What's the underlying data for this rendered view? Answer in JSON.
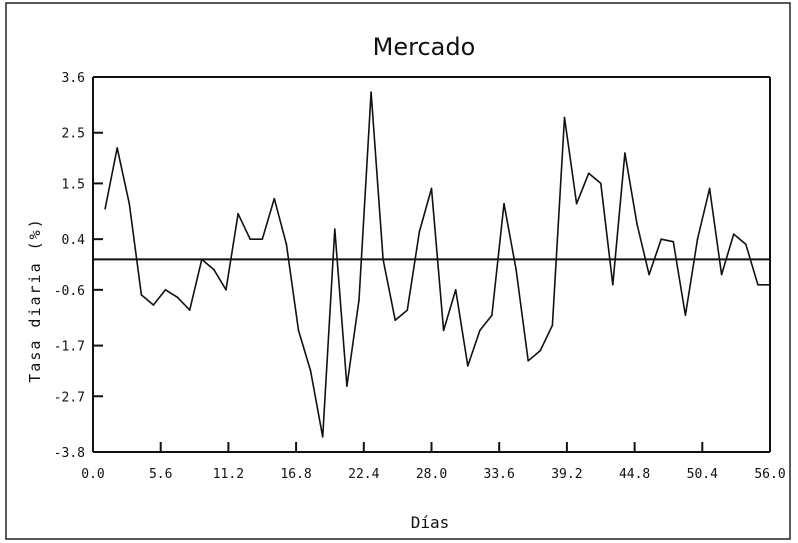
{
  "chart_data": {
    "type": "line",
    "title": "Mercado",
    "xlabel": "Días",
    "ylabel": "Tasa diaria (%)",
    "xlim": [
      0.0,
      56.0
    ],
    "ylim": [
      -3.8,
      3.6
    ],
    "xticks": [
      "0.0",
      "5.6",
      "11.2",
      "16.8",
      "22.4",
      "28.0",
      "33.6",
      "39.2",
      "44.8",
      "50.4",
      "56.0"
    ],
    "xtick_values": [
      0.0,
      5.6,
      11.2,
      16.8,
      22.4,
      28.0,
      33.6,
      39.2,
      44.8,
      50.4,
      56.0
    ],
    "yticks": [
      "3.6",
      "2.5",
      "1.5",
      "0.4",
      "-0.6",
      "-1.7",
      "-2.7",
      "-3.8"
    ],
    "ytick_values": [
      3.6,
      2.5,
      1.5,
      0.4,
      -0.6,
      -1.7,
      -2.7,
      -3.8
    ],
    "reference_line_y": 0.0,
    "grid": false,
    "series": [
      {
        "x": [
          1,
          2,
          3,
          4,
          5,
          6,
          7,
          8,
          9,
          10,
          11,
          12,
          13,
          14,
          15,
          16,
          17,
          18,
          19,
          20,
          21,
          22,
          23,
          24,
          25,
          26,
          27,
          28,
          29,
          30,
          31,
          32,
          33,
          34,
          35,
          36,
          37,
          38,
          39,
          40,
          41,
          42,
          43,
          44,
          45,
          46,
          47,
          48,
          49,
          50,
          51,
          52,
          53,
          54,
          55,
          56
        ],
        "values": [
          1.0,
          2.2,
          1.1,
          -0.7,
          -0.9,
          -0.6,
          -0.75,
          -1.0,
          0.0,
          -0.2,
          -0.6,
          0.9,
          0.4,
          0.4,
          1.2,
          0.3,
          -1.4,
          -2.2,
          -3.5,
          0.6,
          -2.5,
          -0.8,
          3.3,
          0.0,
          -1.2,
          -1.0,
          0.55,
          1.4,
          -1.4,
          -0.6,
          -2.1,
          -1.4,
          -1.1,
          1.1,
          -0.2,
          -2.0,
          -1.8,
          -1.3,
          2.8,
          1.1,
          1.7,
          1.5,
          -0.5,
          2.1,
          0.7,
          -0.3,
          0.4,
          0.35,
          -1.1,
          0.4,
          1.4,
          -0.3,
          0.5,
          0.3,
          -0.5,
          -0.5
        ]
      }
    ]
  }
}
